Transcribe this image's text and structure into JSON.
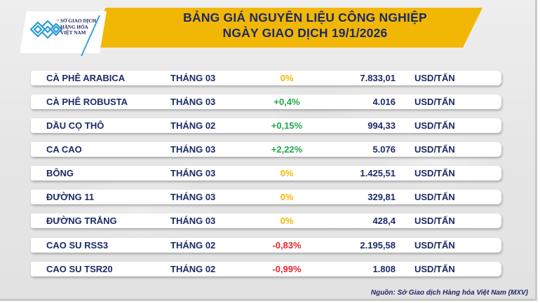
{
  "header": {
    "title_line1": "BẢNG GIÁ NGUYÊN LIỆU CÔNG NGHIỆP",
    "title_line2": "NGÀY GIAO DỊCH 19/1/2026",
    "banner_color": "#f2b705",
    "title_color": "#1b2a66"
  },
  "logo": {
    "line1": "SỞ GIAO DỊCH",
    "line2": "HÀNG HÓA",
    "line3": "VIỆT NAM",
    "tm": "™",
    "icon": "mxv-logo-icon",
    "color": "#2a9ad6"
  },
  "colors": {
    "up": "#1fa84a",
    "flat": "#f2b705",
    "down": "#e8262a",
    "text": "#1b2a66"
  },
  "rows": [
    {
      "name": "CÀ PHÊ ARABICA",
      "month": "THÁNG 03",
      "change": "0%",
      "trend": "flat",
      "price": "7.833,01",
      "unit": "USD/TẤN"
    },
    {
      "name": "CÀ PHÊ ROBUSTA",
      "month": "THÁNG 03",
      "change": "+0,4%",
      "trend": "up",
      "price": "4.016",
      "unit": "USD/TẤN"
    },
    {
      "name": "DẦU CỌ THÔ",
      "month": "THÁNG 02",
      "change": "+0,15%",
      "trend": "up",
      "price": "994,33",
      "unit": "USD/TẤN"
    },
    {
      "name": "CA CAO",
      "month": "THÁNG 03",
      "change": "+2,22%",
      "trend": "up",
      "price": "5.076",
      "unit": "USD/TẤN"
    },
    {
      "name": "BÔNG",
      "month": "THÁNG 03",
      "change": "0%",
      "trend": "flat",
      "price": "1.425,51",
      "unit": "USD/TẤN"
    },
    {
      "name": "ĐƯỜNG 11",
      "month": "THÁNG 03",
      "change": "0%",
      "trend": "flat",
      "price": "329,81",
      "unit": "USD/TẤN"
    },
    {
      "name": "ĐƯỜNG TRẮNG",
      "month": "THÁNG 03",
      "change": "0%",
      "trend": "flat",
      "price": "428,4",
      "unit": "USD/TẤN"
    },
    {
      "name": "CAO SU RSS3",
      "month": "THÁNG 02",
      "change": "-0,83%",
      "trend": "down",
      "price": "2.195,58",
      "unit": "USD/TẤN"
    },
    {
      "name": "CAO SU TSR20",
      "month": "THÁNG 02",
      "change": "-0,99%",
      "trend": "down",
      "price": "1.808",
      "unit": "USD/TẤN"
    }
  ],
  "footer": {
    "source": "Nguồn: Sở Giao dịch Hàng hóa Việt Nam (MXV)"
  }
}
